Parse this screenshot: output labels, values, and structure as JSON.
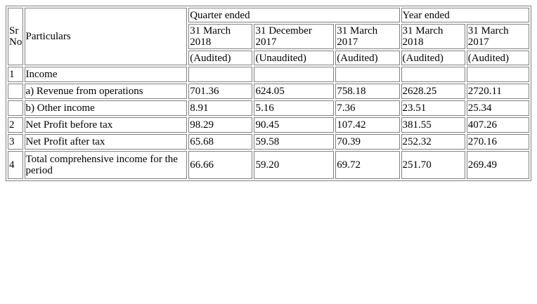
{
  "header": {
    "sr_no_line1": "Sr",
    "sr_no_line2": "No",
    "particulars": "Particulars",
    "quarter_ended": "Quarter ended",
    "year_ended": "Year ended",
    "columns": [
      {
        "day_month": "31 March",
        "year": "2018",
        "status": "(Audited)"
      },
      {
        "day_month": "31 December",
        "year": "2017",
        "status": "(Unaudited)"
      },
      {
        "day_month": "31 March",
        "year": "2017",
        "status": "(Audited)"
      },
      {
        "day_month": "31 March",
        "year": "2018",
        "status": "(Audited)"
      },
      {
        "day_month": "31 March",
        "year": "2017",
        "status": "(Audited)"
      }
    ]
  },
  "rows": [
    {
      "sr": "1",
      "particulars": "Income",
      "values": [
        "",
        "",
        "",
        "",
        ""
      ]
    },
    {
      "sr": "",
      "particulars": "a) Revenue from operations",
      "values": [
        "701.36",
        "624.05",
        "758.18",
        "2628.25",
        "2720.11"
      ]
    },
    {
      "sr": "",
      "particulars": "b) Other income",
      "values": [
        "8.91",
        "5.16",
        "7.36",
        "23.51",
        "25.34"
      ]
    },
    {
      "sr": "2",
      "particulars": "Net Profit before tax",
      "values": [
        "98.29",
        "90.45",
        "107.42",
        "381.55",
        "407.26"
      ]
    },
    {
      "sr": "3",
      "particulars": "Net Profit after tax",
      "values": [
        "65.68",
        "59.58",
        "70.39",
        "252.32",
        "270.16"
      ]
    },
    {
      "sr": "4",
      "particulars": "Total comprehensive income for the period",
      "values": [
        "66.66",
        "59.20",
        "69.72",
        "251.70",
        "269.49"
      ]
    }
  ]
}
